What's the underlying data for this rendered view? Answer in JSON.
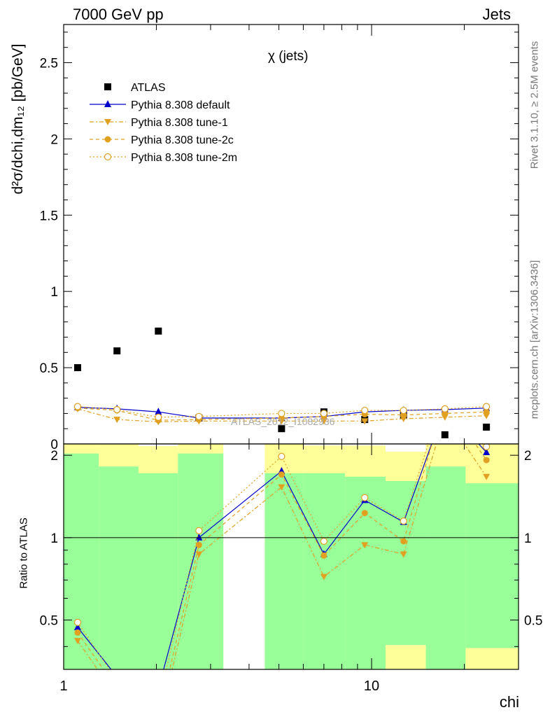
{
  "header": {
    "left": "7000 GeV pp",
    "right": "Jets"
  },
  "side_text": {
    "rivet": "Rivet 3.1.10, ≥ 2.5M events",
    "mcplots": "mcplots.cern.ch [arXiv:1306.3436]"
  },
  "watermark": "ATLAS_2012_I1082936",
  "colors": {
    "band_inner": "#99ff99",
    "band_outer": "#ffff99",
    "data": "#000000",
    "default": "#0000cc",
    "tunes": "#e0a020"
  },
  "chart_data": [
    {
      "type": "scatter",
      "title": "χ (jets)",
      "ylabel": "d²σ/dchi,dm₁₂ [pb/GeV]",
      "xlabel": "",
      "xscale": "log",
      "xlim": [
        1,
        30
      ],
      "ylim": [
        0,
        2.75
      ],
      "yticks": [
        "0",
        "0.5",
        "1",
        "1.5",
        "2",
        "2.5"
      ],
      "legend_position": "top-left",
      "x": [
        1.11,
        1.49,
        2.03,
        2.75,
        5.1,
        7.0,
        9.5,
        12.7,
        17.3,
        23.6
      ],
      "series": [
        {
          "name": "ATLAS",
          "style": "data",
          "values": [
            0.5,
            0.61,
            0.74,
            0.17,
            0.1,
            0.21,
            0.16,
            0.19,
            0.06,
            0.11
          ]
        },
        {
          "name": "Pythia 8.308 default",
          "style": "default",
          "values": [
            0.24,
            0.23,
            0.21,
            0.17,
            0.17,
            0.18,
            0.21,
            0.22,
            0.225,
            0.235
          ]
        },
        {
          "name": "Pythia 8.308 tune-1",
          "style": "tune1",
          "values": [
            0.23,
            0.16,
            0.145,
            0.15,
            0.15,
            0.15,
            0.15,
            0.165,
            0.175,
            0.185
          ]
        },
        {
          "name": "Pythia 8.308 tune-2c",
          "style": "tune2c",
          "values": [
            0.235,
            0.22,
            0.155,
            0.16,
            0.17,
            0.18,
            0.195,
            0.19,
            0.2,
            0.21
          ]
        },
        {
          "name": "Pythia 8.308 tune-2m",
          "style": "tune2m",
          "values": [
            0.245,
            0.225,
            0.175,
            0.18,
            0.2,
            0.2,
            0.22,
            0.22,
            0.23,
            0.245
          ]
        }
      ]
    },
    {
      "type": "line",
      "ylabel": "Ratio to ATLAS",
      "xlabel": "chi",
      "xscale": "log",
      "xlim": [
        1,
        30
      ],
      "ylim": [
        0.33,
        2.2
      ],
      "yticks": [
        "0.5",
        "1",
        "2"
      ],
      "xticks": [
        "1",
        "10"
      ],
      "bands": [
        {
          "xrange": [
            1,
            1.3
          ],
          "inner": [
            0.33,
            2.03
          ],
          "outer": [
            0.33,
            2.2
          ]
        },
        {
          "xrange": [
            1.3,
            1.75
          ],
          "inner": [
            0.33,
            1.82
          ],
          "outer": [
            0.33,
            2.2
          ]
        },
        {
          "xrange": [
            1.75,
            2.35
          ],
          "inner": [
            0.33,
            1.72
          ],
          "outer": [
            0.33,
            2.16
          ]
        },
        {
          "xrange": [
            2.35,
            3.3
          ],
          "inner": [
            0.33,
            2.03
          ],
          "outer": [
            0.33,
            2.2
          ]
        },
        {
          "xrange": [
            4.5,
            6.0
          ],
          "inner": [
            0.33,
            1.72
          ],
          "outer": [
            0.33,
            2.2
          ]
        },
        {
          "xrange": [
            6.0,
            8.2
          ],
          "inner": [
            0.33,
            1.72
          ],
          "outer": [
            0.33,
            2.17
          ]
        },
        {
          "xrange": [
            8.2,
            11.1
          ],
          "inner": [
            0.33,
            1.67
          ],
          "outer": [
            0.33,
            2.17
          ]
        },
        {
          "xrange": [
            11.1,
            15.0
          ],
          "inner": [
            0.405,
            1.61
          ],
          "outer": [
            0.33,
            2.06
          ]
        },
        {
          "xrange": [
            15.0,
            20.2
          ],
          "inner": [
            0.33,
            1.82
          ],
          "outer": [
            0.33,
            2.2
          ]
        },
        {
          "xrange": [
            20.2,
            30
          ],
          "inner": [
            0.395,
            1.58
          ],
          "outer": [
            0.33,
            2.2
          ]
        }
      ],
      "x": [
        1.11,
        1.49,
        2.03,
        2.75,
        5.1,
        7.0,
        9.5,
        12.7,
        17.3,
        23.6
      ],
      "series": [
        {
          "name": "Pythia 8.308 default",
          "style": "default",
          "values": [
            0.47,
            0.31,
            0.28,
            1.0,
            1.75,
            0.87,
            1.37,
            1.14,
            3.0,
            2.05
          ]
        },
        {
          "name": "Pythia 8.308 tune-1",
          "style": "tune1",
          "values": [
            0.42,
            0.26,
            0.2,
            0.87,
            1.53,
            0.72,
            0.94,
            0.87,
            2.8,
            1.67
          ]
        },
        {
          "name": "Pythia 8.308 tune-2c",
          "style": "tune2c",
          "values": [
            0.45,
            0.28,
            0.22,
            0.94,
            1.7,
            0.86,
            1.23,
            0.97,
            3.2,
            1.92
          ]
        },
        {
          "name": "Pythia 8.308 tune-2m",
          "style": "tune2m",
          "values": [
            0.49,
            0.3,
            0.25,
            1.06,
            1.98,
            0.97,
            1.4,
            1.15,
            3.4,
            2.15
          ]
        }
      ]
    }
  ]
}
